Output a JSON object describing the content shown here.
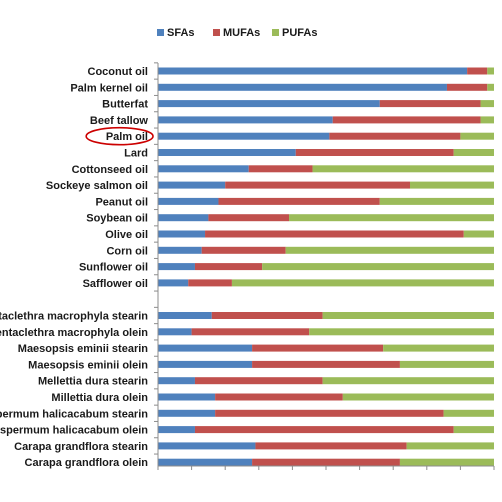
{
  "chart_data": {
    "type": "bar",
    "orientation": "horizontal",
    "stacked": "percent",
    "legend_position": "top",
    "grid": false,
    "xlim": [
      0,
      100
    ],
    "categories": [
      "Coconut oil",
      "Palm kernel oil",
      "Butterfat",
      "Beef tallow",
      "Palm oil",
      "Lard",
      "Cottonseed oil",
      "Sockeye salmon oil",
      "Peanut oil",
      "Soybean oil",
      "Olive oil",
      "Corn oil",
      "Sunflower oil",
      "Safflower oil",
      "",
      "Pentaclethra macrophyla stearin",
      "Pentaclethra macrophyla olein",
      "Maesopsis eminii stearin",
      "Maesopsis eminii olein",
      "Mellettia dura stearin",
      "Millettia dura olein",
      "Cardiospermum halicacabum stearin",
      "Cardiospermum halicacabum olein",
      "Carapa grandflora stearin",
      "Carapa grandflora olein"
    ],
    "series": [
      {
        "name": "SFAs",
        "color": "#4f81bd",
        "values": [
          92,
          86,
          66,
          52,
          51,
          41,
          27,
          20,
          18,
          15,
          14,
          13,
          11,
          9,
          null,
          16,
          10,
          28,
          28,
          11,
          17,
          17,
          11,
          29,
          28
        ]
      },
      {
        "name": "MUFAs",
        "color": "#c0504d",
        "values": [
          6,
          12,
          30,
          44,
          39,
          47,
          19,
          55,
          48,
          24,
          77,
          25,
          20,
          13,
          null,
          33,
          35,
          39,
          44,
          38,
          38,
          68,
          77,
          45,
          44
        ]
      },
      {
        "name": "PUFAs",
        "color": "#9bbb59",
        "values": [
          2,
          2,
          4,
          4,
          10,
          12,
          54,
          25,
          34,
          61,
          9,
          62,
          69,
          78,
          null,
          51,
          55,
          33,
          28,
          51,
          45,
          15,
          12,
          26,
          28
        ]
      }
    ],
    "highlight": {
      "category": "Palm oil",
      "color": "#cc0000"
    }
  }
}
